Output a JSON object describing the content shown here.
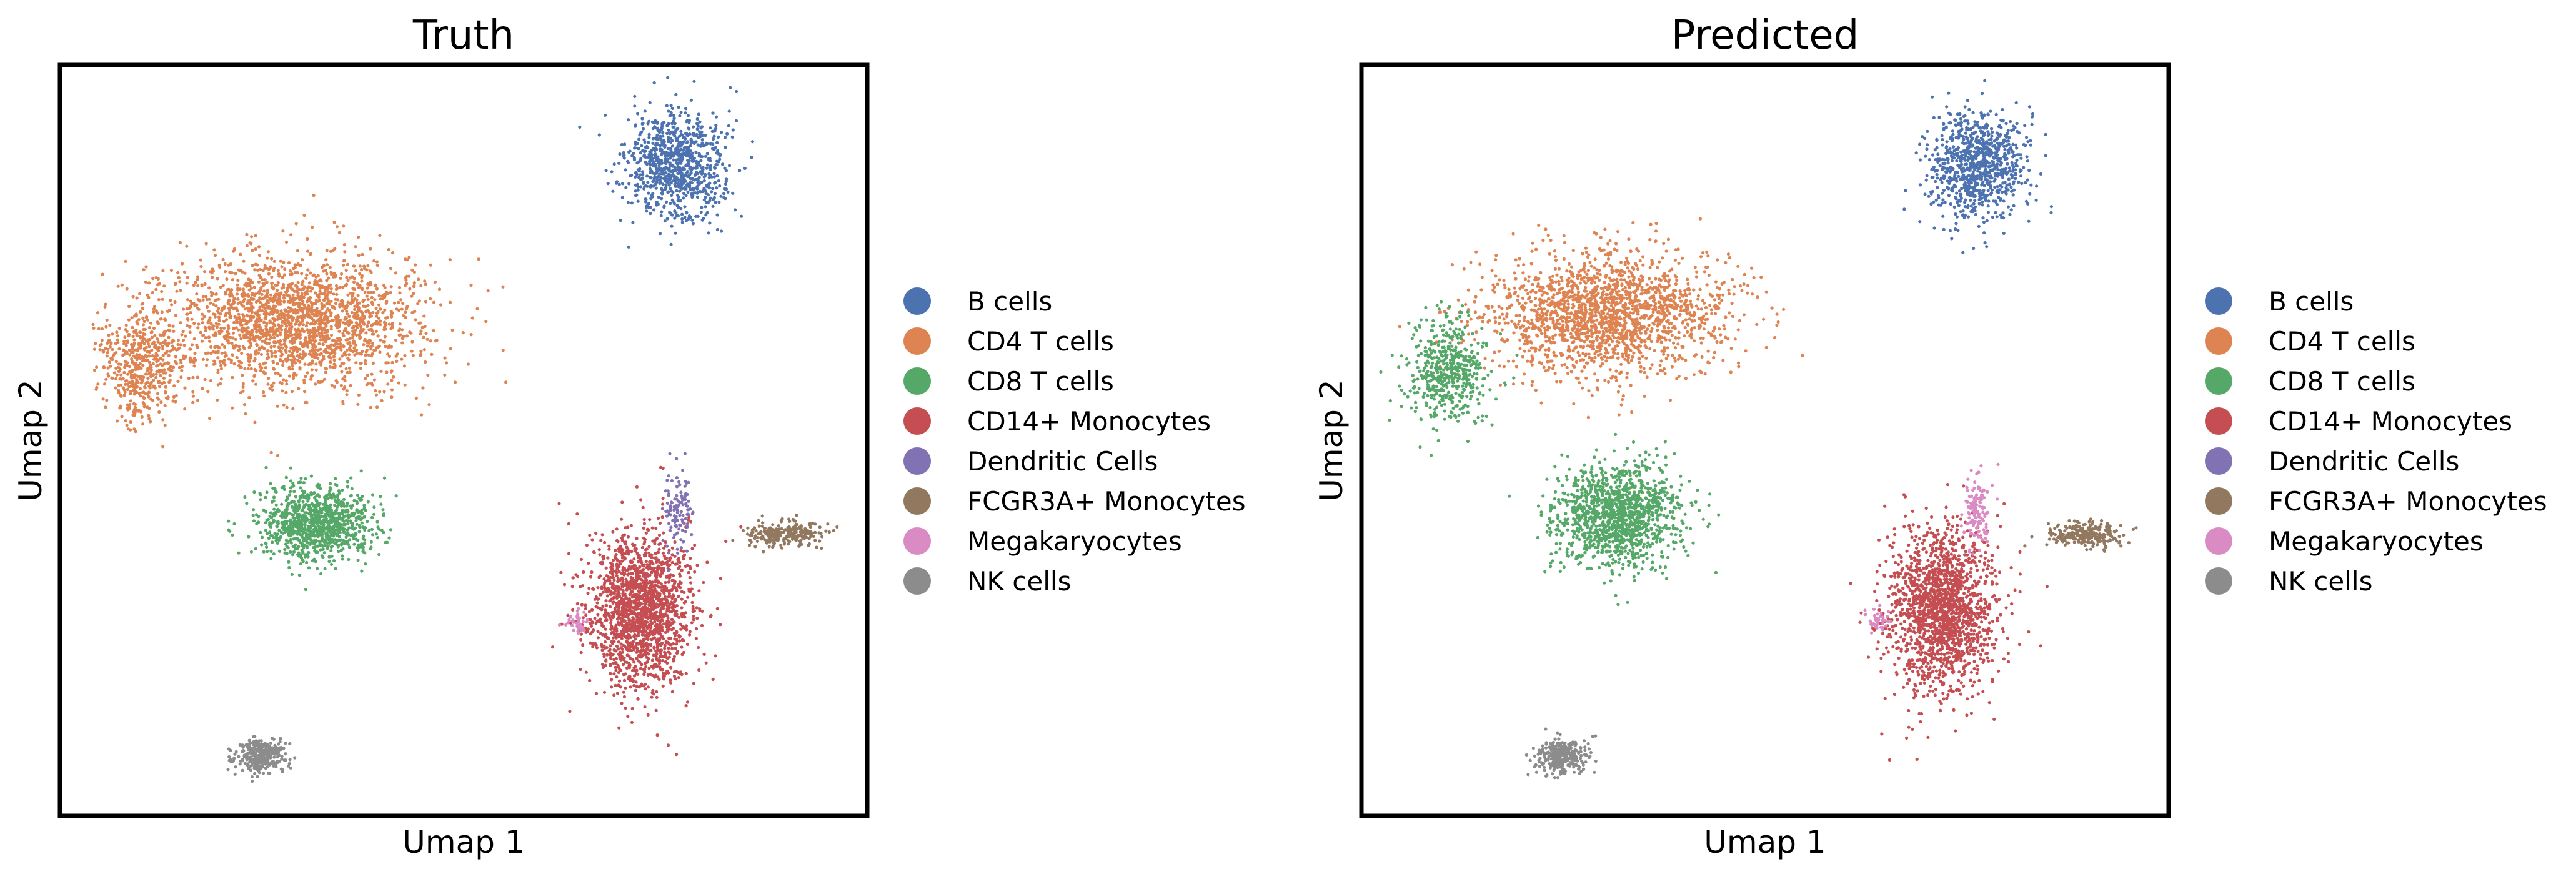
{
  "chart_data": [
    {
      "type": "scatter",
      "title": "Truth",
      "xlabel": "Umap 1",
      "ylabel": "Umap 2",
      "xlim": [
        -6,
        16
      ],
      "ylim": [
        -5,
        15
      ],
      "legend_position": "right",
      "clusters": [
        {
          "category": "B cells",
          "center": [
            10.8,
            12.3
          ],
          "spread": [
            1.2,
            1.3
          ],
          "n": 900
        },
        {
          "category": "CD4 T cells",
          "center": [
            0.4,
            8.2
          ],
          "spread": [
            3.1,
            1.6
          ],
          "n": 2100
        },
        {
          "category": "CD4 T cells",
          "center": [
            -3.8,
            7.0
          ],
          "spread": [
            1.0,
            1.4
          ],
          "n": 500
        },
        {
          "category": "CD8 T cells",
          "center": [
            1.0,
            2.8
          ],
          "spread": [
            1.4,
            0.9
          ],
          "n": 1000
        },
        {
          "category": "CD14+ Monocytes",
          "center": [
            9.8,
            0.5
          ],
          "spread": [
            1.3,
            1.9
          ],
          "n": 1700
        },
        {
          "category": "Dendritic Cells",
          "center": [
            10.8,
            3.2
          ],
          "spread": [
            0.35,
            0.9
          ],
          "n": 120
        },
        {
          "category": "FCGR3A+ Monocytes",
          "center": [
            13.7,
            2.5
          ],
          "spread": [
            0.9,
            0.3
          ],
          "n": 250
        },
        {
          "category": "Megakaryocytes",
          "center": [
            8.1,
            0.2
          ],
          "spread": [
            0.3,
            0.3
          ],
          "n": 40
        },
        {
          "category": "NK cells",
          "center": [
            -0.5,
            -3.4
          ],
          "spread": [
            0.6,
            0.4
          ],
          "n": 320
        }
      ]
    },
    {
      "type": "scatter",
      "title": "Predicted",
      "xlabel": "Umap 1",
      "ylabel": "Umap 2",
      "xlim": [
        -6,
        16
      ],
      "ylim": [
        -5,
        15
      ],
      "legend_position": "right",
      "clusters": [
        {
          "category": "B cells",
          "center": [
            10.8,
            12.3
          ],
          "spread": [
            1.2,
            1.3
          ],
          "n": 900
        },
        {
          "category": "CD4 T cells",
          "center": [
            0.6,
            8.4
          ],
          "spread": [
            3.0,
            1.5
          ],
          "n": 1900
        },
        {
          "category": "CD8 T cells",
          "center": [
            -3.6,
            6.8
          ],
          "spread": [
            1.0,
            1.3
          ],
          "n": 520
        },
        {
          "category": "CD8 T cells",
          "center": [
            1.0,
            3.0
          ],
          "spread": [
            1.6,
            1.2
          ],
          "n": 1300
        },
        {
          "category": "CD14+ Monocytes",
          "center": [
            9.8,
            0.5
          ],
          "spread": [
            1.3,
            1.9
          ],
          "n": 1700
        },
        {
          "category": "Megakaryocytes",
          "center": [
            10.8,
            3.2
          ],
          "spread": [
            0.35,
            0.9
          ],
          "n": 130
        },
        {
          "category": "FCGR3A+ Monocytes",
          "center": [
            13.7,
            2.5
          ],
          "spread": [
            0.9,
            0.3
          ],
          "n": 250
        },
        {
          "category": "Megakaryocytes",
          "center": [
            8.1,
            0.2
          ],
          "spread": [
            0.3,
            0.3
          ],
          "n": 40
        },
        {
          "category": "NK cells",
          "center": [
            -0.5,
            -3.4
          ],
          "spread": [
            0.6,
            0.4
          ],
          "n": 320
        }
      ]
    }
  ],
  "legend": {
    "entries": [
      {
        "label": "B cells",
        "color": "#4C72B0"
      },
      {
        "label": "CD4 T cells",
        "color": "#DD8452"
      },
      {
        "label": "CD8 T cells",
        "color": "#55A868"
      },
      {
        "label": "CD14+ Monocytes",
        "color": "#C44E52"
      },
      {
        "label": "Dendritic Cells",
        "color": "#8172B3"
      },
      {
        "label": "FCGR3A+ Monocytes",
        "color": "#937860"
      },
      {
        "label": "Megakaryocytes",
        "color": "#DA8BC3"
      },
      {
        "label": "NK cells",
        "color": "#8C8C8C"
      }
    ]
  }
}
